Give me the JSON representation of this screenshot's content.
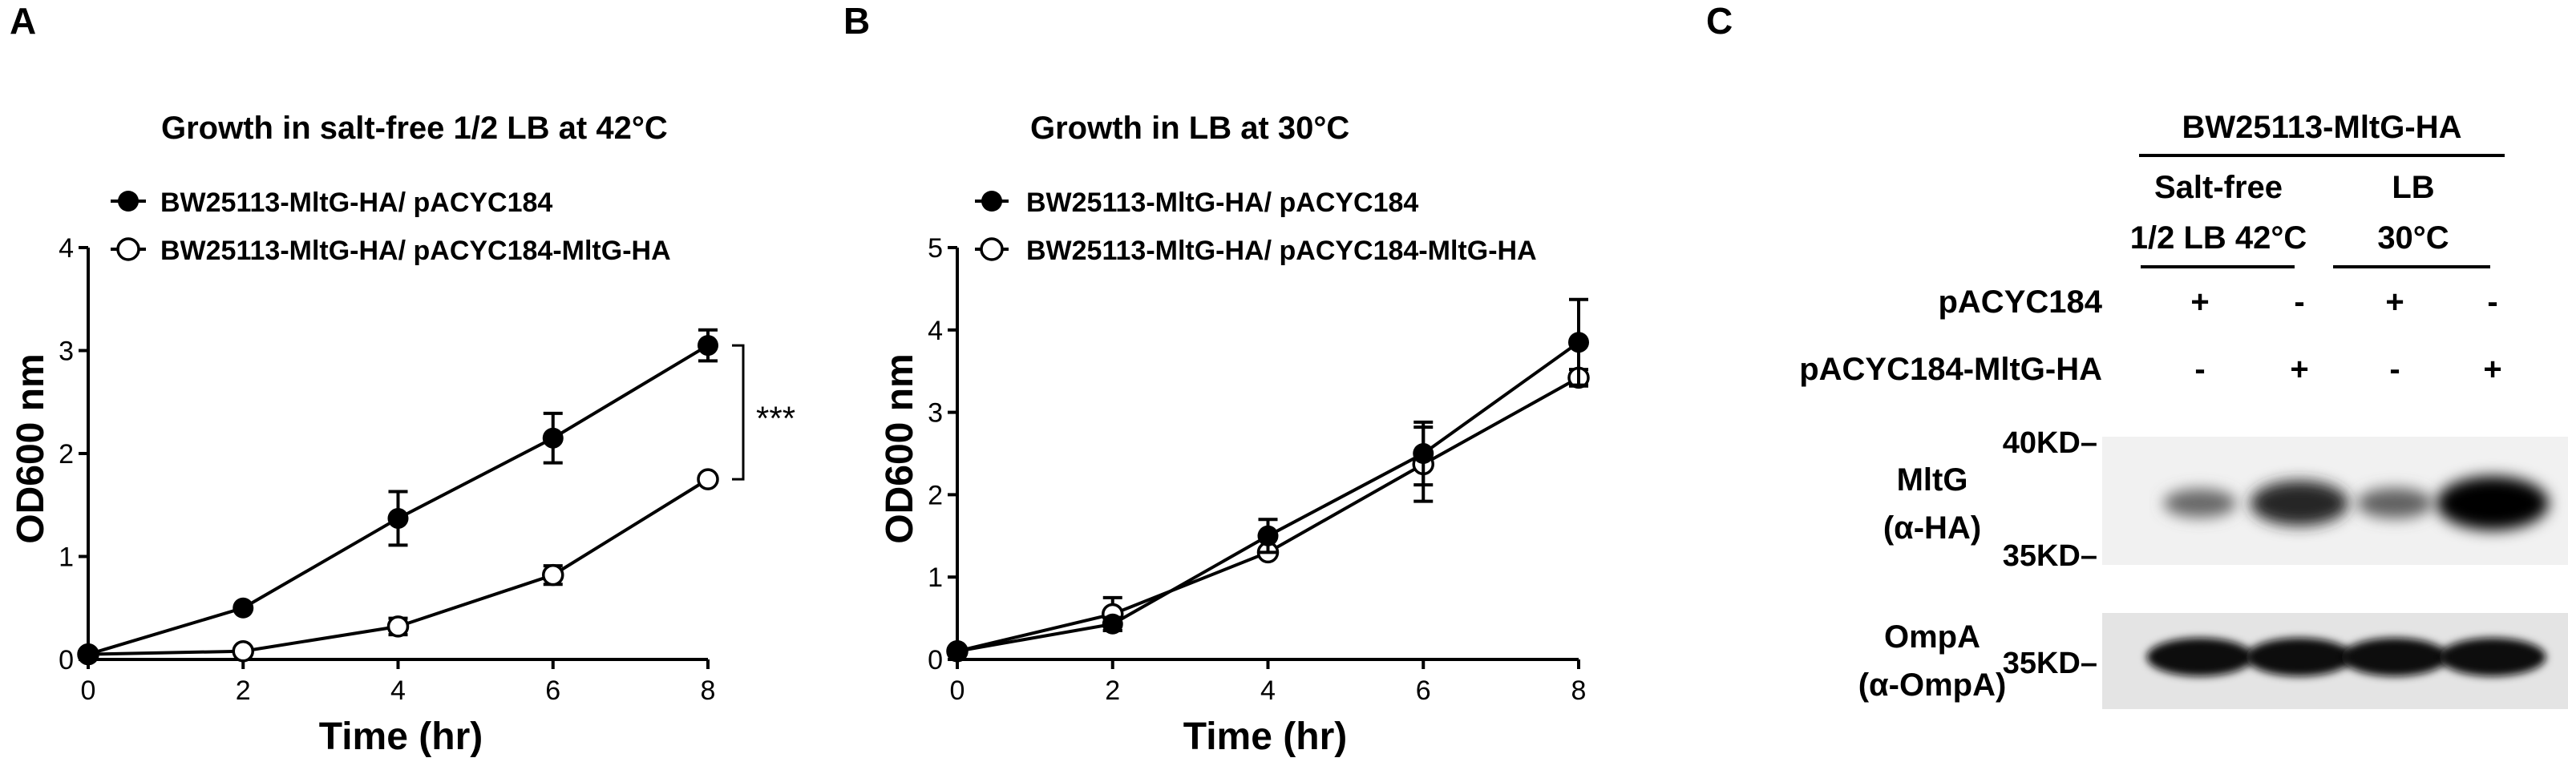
{
  "panels": {
    "A": {
      "letter": "A",
      "chart_data": {
        "type": "line",
        "title": "Growth in salt-free 1/2 LB at 42°C",
        "xlabel": "Time (hr)",
        "ylabel": "OD600 nm",
        "x": [
          0,
          2,
          4,
          6,
          8
        ],
        "xticks": [
          "0",
          "2",
          "4",
          "6",
          "8"
        ],
        "yticks": [
          "0",
          "1",
          "2",
          "3",
          "4"
        ],
        "xlim": [
          0,
          8
        ],
        "ylim": [
          0,
          4
        ],
        "legend_position": "top-left",
        "series": [
          {
            "name": "BW25113-MltG-HA/ pACYC184",
            "marker": "filled-circle",
            "values": [
              0.05,
              0.5,
              1.37,
              2.15,
              3.05
            ],
            "errors": [
              0,
              0,
              0.26,
              0.24,
              0.15
            ]
          },
          {
            "name": "BW25113-MltG-HA/ pACYC184-MltG-HA",
            "marker": "open-circle",
            "values": [
              0.05,
              0.08,
              0.32,
              0.82,
              1.75
            ],
            "errors": [
              0,
              0,
              0.08,
              0.09,
              0.03
            ]
          }
        ],
        "annotations": [
          {
            "text": "***",
            "x": 8,
            "y_range": [
              1.75,
              3.05
            ]
          }
        ]
      }
    },
    "B": {
      "letter": "B",
      "chart_data": {
        "type": "line",
        "title": "Growth in LB at 30°C",
        "xlabel": "Time (hr)",
        "ylabel": "OD600 nm",
        "x": [
          0,
          2,
          4,
          6,
          8
        ],
        "xticks": [
          "0",
          "2",
          "4",
          "6",
          "8"
        ],
        "yticks": [
          "0",
          "1",
          "2",
          "3",
          "4",
          "5"
        ],
        "xlim": [
          0,
          8
        ],
        "ylim": [
          0,
          5
        ],
        "legend_position": "top-left",
        "series": [
          {
            "name": "BW25113-MltG-HA/ pACYC184",
            "marker": "filled-circle",
            "values": [
              0.1,
              0.43,
              1.5,
              2.5,
              3.85
            ],
            "errors": [
              0,
              0.08,
              0.2,
              0.38,
              0.52
            ]
          },
          {
            "name": "BW25113-MltG-HA/ pACYC184-MltG-HA",
            "marker": "open-circle",
            "values": [
              0.1,
              0.55,
              1.3,
              2.37,
              3.42
            ],
            "errors": [
              0,
              0.2,
              0.05,
              0.45,
              0.1
            ]
          }
        ]
      }
    },
    "C": {
      "letter": "C",
      "strain": "BW25113-MltG-HA",
      "conditions": [
        {
          "line1": "Salt-free",
          "line2": "1/2 LB 42°C"
        },
        {
          "line1": "LB",
          "line2": "30°C"
        }
      ],
      "rows": [
        {
          "label": "pACYC184",
          "signs": [
            "+",
            "-",
            "+",
            "-"
          ]
        },
        {
          "label": "pACYC184-MltG-HA",
          "signs": [
            "-",
            "+",
            "-",
            "+"
          ]
        }
      ],
      "blots": [
        {
          "label1": "MltG",
          "label2": "(α-HA)",
          "marker_top": "40KD–",
          "marker_bottom": "35KD–",
          "band_intensity": [
            0.3,
            0.75,
            0.35,
            1.0
          ]
        },
        {
          "label1": "OmpA",
          "label2": "(α-OmpA)",
          "marker": "35KD–",
          "band_intensity": [
            0.9,
            0.9,
            0.9,
            0.9
          ]
        }
      ]
    }
  }
}
